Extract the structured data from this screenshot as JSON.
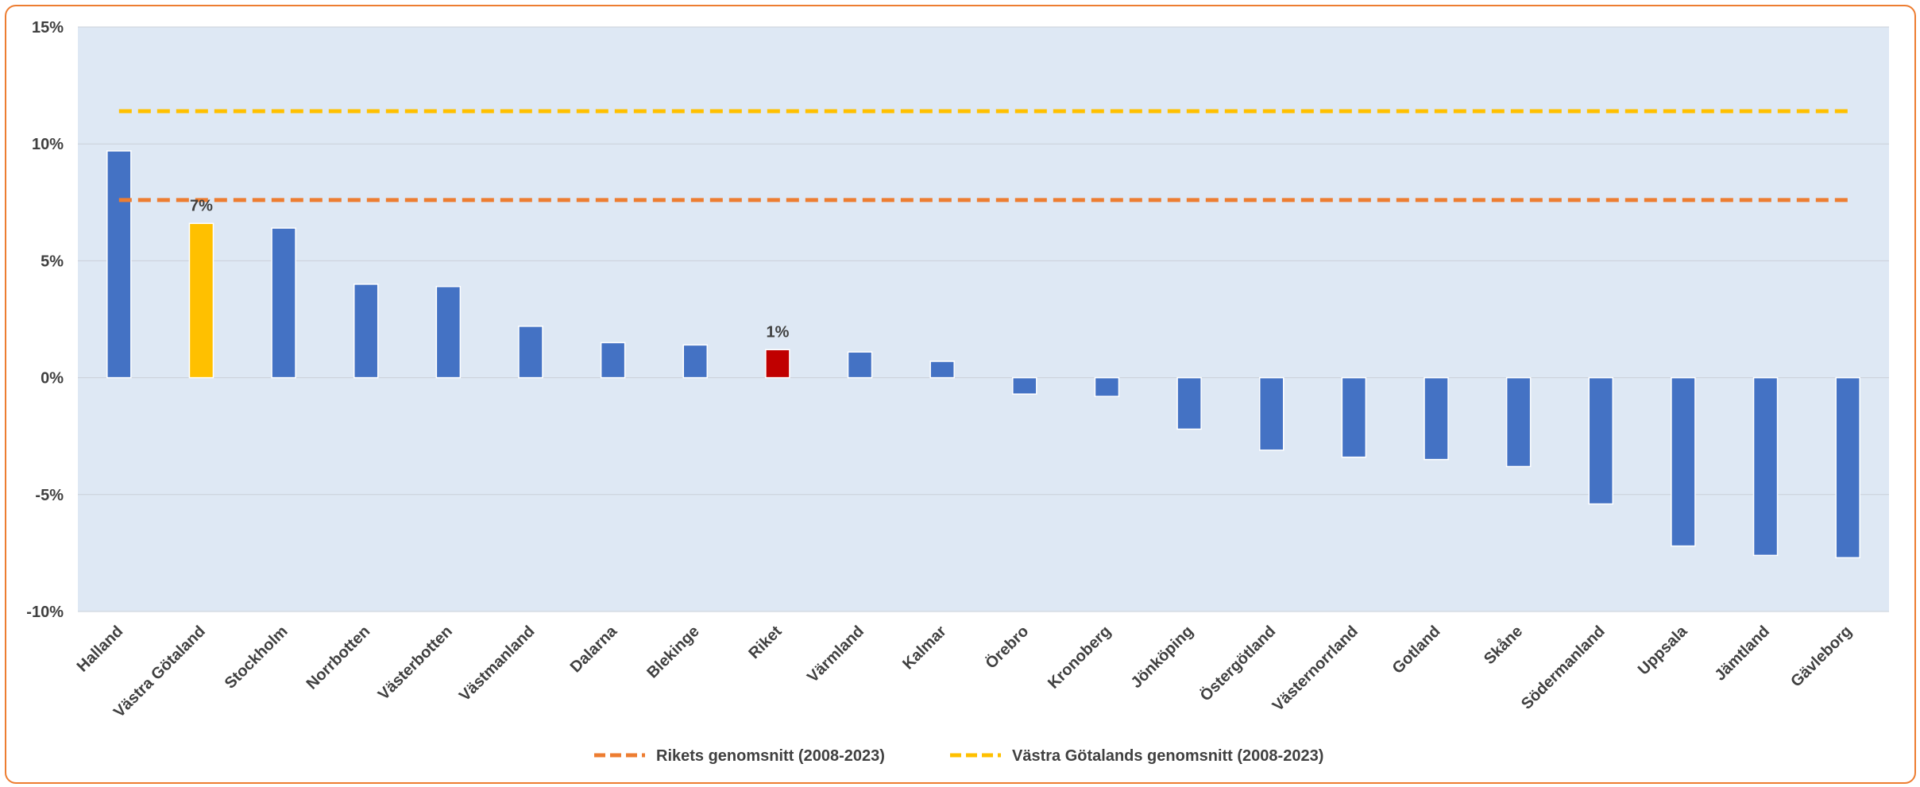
{
  "chart_data": {
    "type": "bar",
    "title": "",
    "xlabel": "",
    "ylabel": "",
    "ylim": [
      -10,
      15
    ],
    "y_ticks": [
      15,
      10,
      5,
      0,
      -5,
      -10
    ],
    "y_tick_labels": [
      "15%",
      "10%",
      "5%",
      "0%",
      "-5%",
      "-10%"
    ],
    "grid": true,
    "categories": [
      "Halland",
      "Västra Götaland",
      "Stockholm",
      "Norrbotten",
      "Västerbotten",
      "Västmanland",
      "Dalarna",
      "Blekinge",
      "Riket",
      "Värmland",
      "Kalmar",
      "Örebro",
      "Kronoberg",
      "Jönköping",
      "Östergötland",
      "Västernorrland",
      "Gotland",
      "Skåne",
      "Södermanland",
      "Uppsala",
      "Jämtland",
      "Gävleborg"
    ],
    "values": [
      9.7,
      6.6,
      6.4,
      4.0,
      3.9,
      2.2,
      1.5,
      1.4,
      1.2,
      1.1,
      0.7,
      -0.7,
      -0.8,
      -2.2,
      -3.1,
      -3.4,
      -3.5,
      -3.8,
      -5.4,
      -7.2,
      -7.6,
      -7.7
    ],
    "bar_colors": [
      "#4472C4",
      "#FFC000",
      "#4472C4",
      "#4472C4",
      "#4472C4",
      "#4472C4",
      "#4472C4",
      "#4472C4",
      "#C00000",
      "#4472C4",
      "#4472C4",
      "#4472C4",
      "#4472C4",
      "#4472C4",
      "#4472C4",
      "#4472C4",
      "#4472C4",
      "#4472C4",
      "#4472C4",
      "#4472C4",
      "#4472C4",
      "#4472C4"
    ],
    "data_labels": [
      {
        "category": "Västra Götaland",
        "text": "7%"
      },
      {
        "category": "Riket",
        "text": "1%"
      }
    ],
    "reference_lines": [
      {
        "name": "Rikets genomsnitt (2008-2023)",
        "value": 7.6,
        "color": "#ED7D31",
        "style": "dashed"
      },
      {
        "name": "Västra Götalands genomsnitt (2008-2023)",
        "value": 11.4,
        "color": "#FFC000",
        "style": "dashed"
      }
    ],
    "legend_position": "bottom-center",
    "plot_background": "#DEE8F4",
    "frame_color": "#ED7D31"
  }
}
